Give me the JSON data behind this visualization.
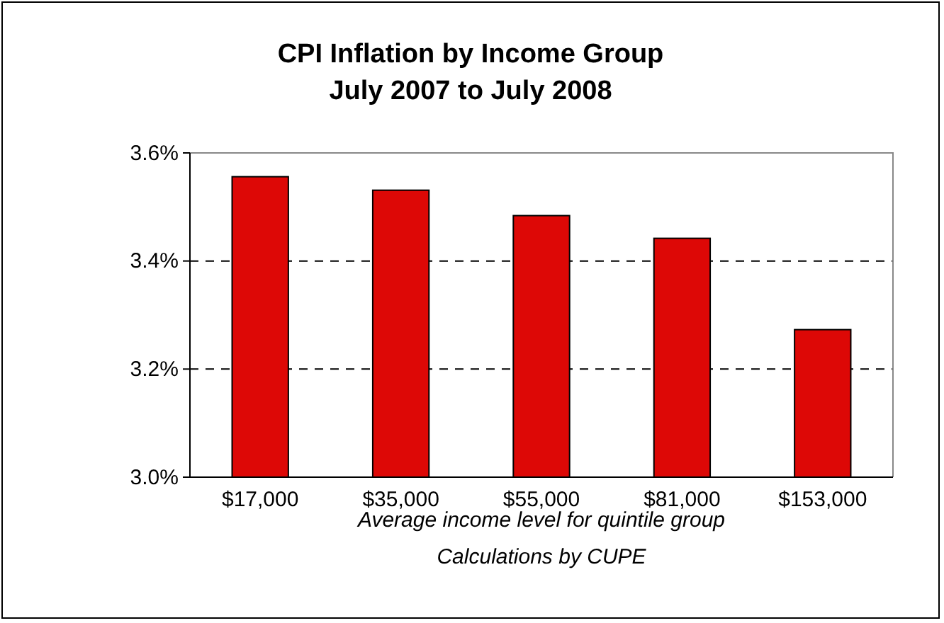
{
  "chart_data": {
    "type": "bar",
    "title": "CPI Inflation by Income Group",
    "subtitle": "July 2007 to July 2008",
    "xlabel": "Average income level for quintile group",
    "annotations": [
      "Calculations by CUPE"
    ],
    "categories": [
      "$17,000",
      "$35,000",
      "$55,000",
      "$81,000",
      "$153,000"
    ],
    "values": [
      3.556,
      3.531,
      3.484,
      3.442,
      3.273
    ],
    "color": "#dd0806",
    "ylim": [
      3.0,
      3.6
    ],
    "yticks": [
      {
        "value": 3.0,
        "label": "3.0%"
      },
      {
        "value": 3.2,
        "label": "3.2%"
      },
      {
        "value": 3.4,
        "label": "3.4%"
      },
      {
        "value": 3.6,
        "label": "3.6%"
      }
    ],
    "grid": "y"
  }
}
